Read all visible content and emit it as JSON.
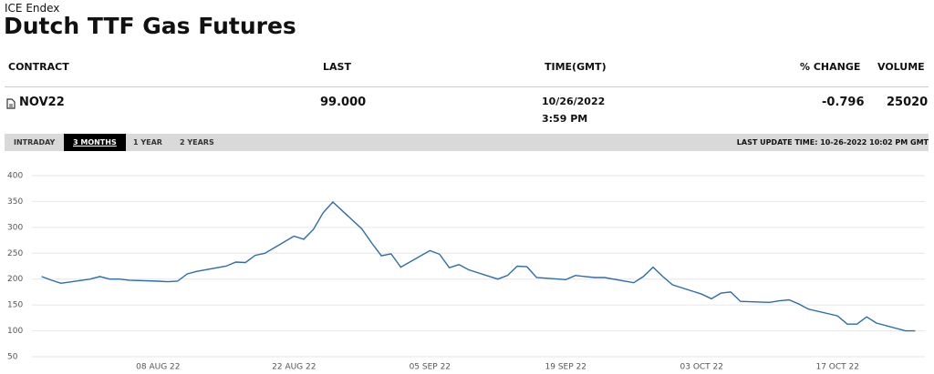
{
  "header": {
    "source": "ICE Endex",
    "title": "Dutch TTF Gas Futures"
  },
  "table": {
    "columns": [
      "CONTRACT",
      "LAST",
      "TIME(GMT)",
      "% CHANGE",
      "VOLUME"
    ],
    "rows": [
      [
        "NOV22",
        "99.000",
        [
          "10/26/2022",
          "3:59 PM"
        ],
        "-0.796",
        "25020"
      ]
    ]
  },
  "tabs": {
    "items": [
      "INTRADAY",
      "3 MONTHS",
      "1 YEAR",
      "2 YEARS"
    ],
    "last_update": "LAST UPDATE TIME: 10-26-2022 10:02 PM GMT"
  },
  "chart_data": {
    "type": "line",
    "color": "#2b6cb0",
    "grid": true,
    "x": [
      "2022-07-27",
      "2022-07-28",
      "2022-07-29",
      "2022-08-01",
      "2022-08-02",
      "2022-08-03",
      "2022-08-04",
      "2022-08-05",
      "2022-08-08",
      "2022-08-09",
      "2022-08-10",
      "2022-08-11",
      "2022-08-12",
      "2022-08-15",
      "2022-08-16",
      "2022-08-17",
      "2022-08-18",
      "2022-08-19",
      "2022-08-22",
      "2022-08-23",
      "2022-08-24",
      "2022-08-25",
      "2022-08-26",
      "2022-08-29",
      "2022-08-30",
      "2022-08-31",
      "2022-09-01",
      "2022-09-02",
      "2022-09-05",
      "2022-09-06",
      "2022-09-07",
      "2022-09-08",
      "2022-09-09",
      "2022-09-12",
      "2022-09-13",
      "2022-09-14",
      "2022-09-15",
      "2022-09-16",
      "2022-09-19",
      "2022-09-20",
      "2022-09-21",
      "2022-09-22",
      "2022-09-23",
      "2022-09-26",
      "2022-09-27",
      "2022-09-28",
      "2022-09-29",
      "2022-09-30",
      "2022-10-03",
      "2022-10-04",
      "2022-10-05",
      "2022-10-06",
      "2022-10-07",
      "2022-10-10",
      "2022-10-11",
      "2022-10-12",
      "2022-10-13",
      "2022-10-14",
      "2022-10-17",
      "2022-10-18",
      "2022-10-19",
      "2022-10-20",
      "2022-10-21",
      "2022-10-24",
      "2022-10-25"
    ],
    "values": [
      205,
      198,
      192,
      200,
      205,
      200,
      200,
      198,
      196,
      195,
      196,
      210,
      215,
      225,
      233,
      232,
      246,
      250,
      283,
      277,
      296,
      328,
      349,
      297,
      270,
      245,
      249,
      223,
      255,
      248,
      222,
      228,
      218,
      200,
      207,
      225,
      224,
      203,
      199,
      207,
      205,
      203,
      203,
      193,
      205,
      223,
      205,
      189,
      171,
      162,
      173,
      175,
      157,
      155,
      158,
      160,
      152,
      142,
      129,
      113,
      113,
      127,
      115,
      100,
      100
    ],
    "xlim": [
      "2022-07-26",
      "2022-10-26"
    ],
    "xticks": [
      {
        "value": "2022-08-08",
        "label": "08 AUG 22"
      },
      {
        "value": "2022-08-22",
        "label": "22 AUG 22"
      },
      {
        "value": "2022-09-05",
        "label": "05 SEP 22"
      },
      {
        "value": "2022-09-19",
        "label": "19 SEP 22"
      },
      {
        "value": "2022-10-03",
        "label": "03 OCT 22"
      },
      {
        "value": "2022-10-17",
        "label": "17 OCT 22"
      }
    ],
    "ylim": [
      50,
      400
    ],
    "yticks": [
      50,
      100,
      150,
      200,
      250,
      300,
      350,
      400
    ]
  }
}
